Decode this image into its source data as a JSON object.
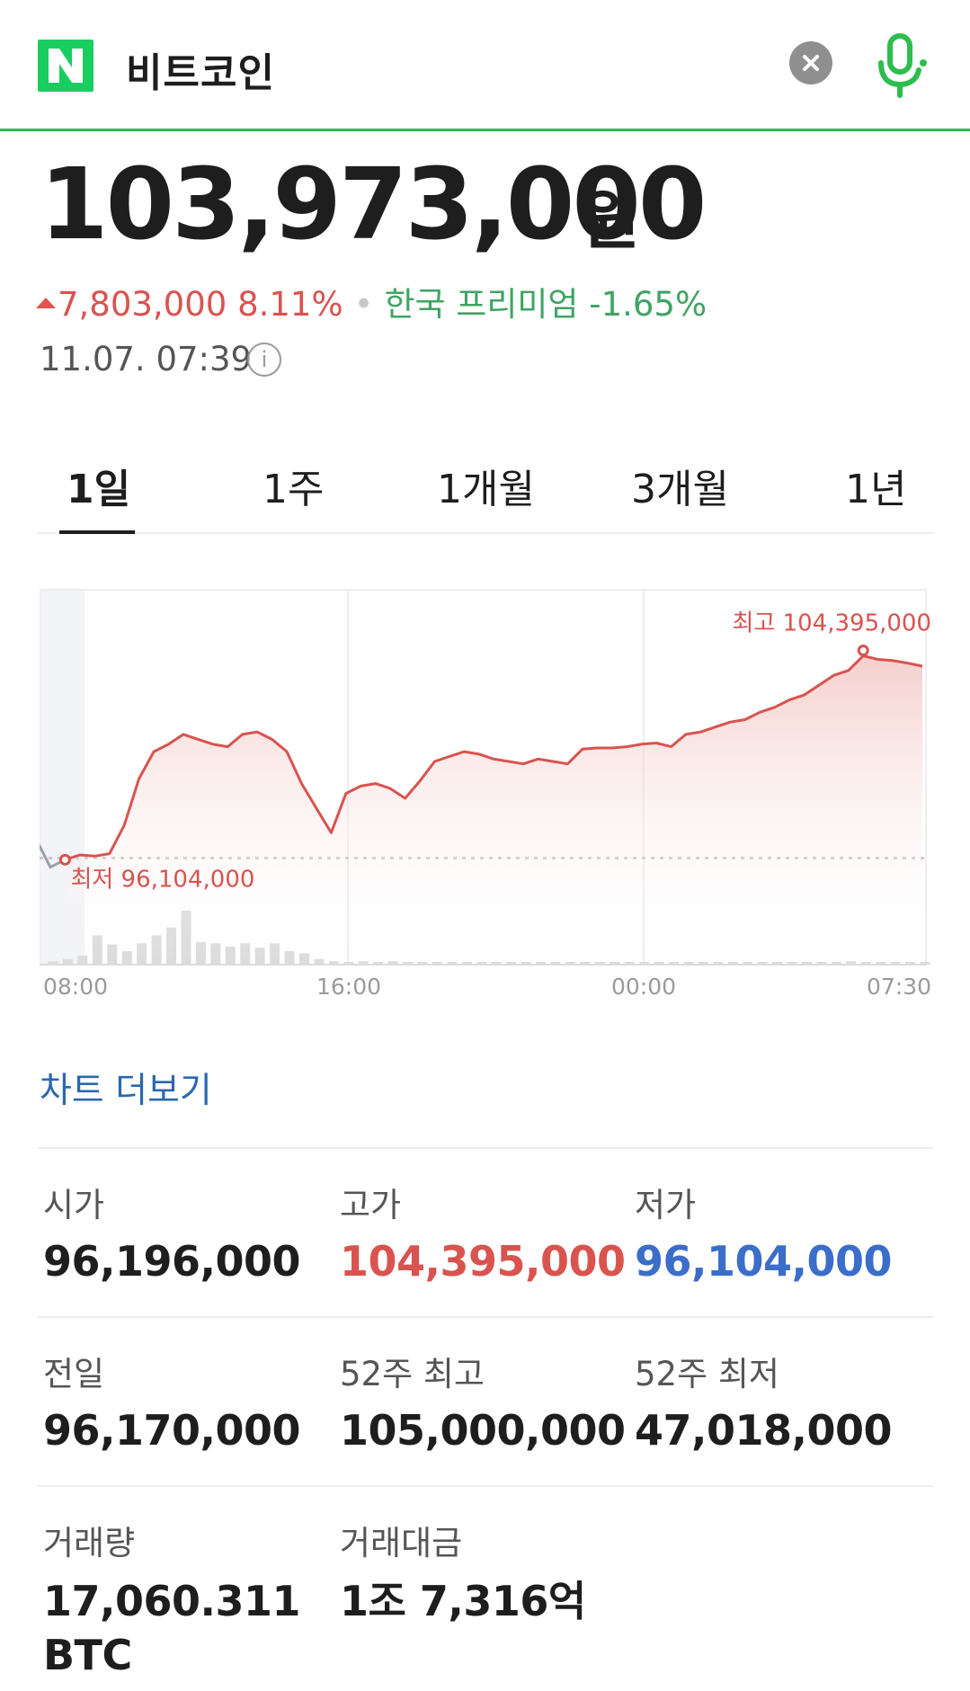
{
  "search": {
    "query": "비트코인"
  },
  "price": {
    "value": "103,973,000",
    "unit": "원"
  },
  "change": {
    "amount": "7,803,000",
    "percent": "8.11%",
    "separator": "•",
    "premium": "한국 프리미엄 -1.65%"
  },
  "timestamp": "11.07. 07:39",
  "info_icon_glyph": "i",
  "tabs": [
    {
      "label": "1일",
      "active": true
    },
    {
      "label": "1주",
      "active": false
    },
    {
      "label": "1개월",
      "active": false
    },
    {
      "label": "3개월",
      "active": false
    },
    {
      "label": "1년",
      "active": false
    }
  ],
  "chart_data": {
    "type": "area",
    "x_tick_labels": [
      "08:00",
      "16:00",
      "00:00",
      "07:30"
    ],
    "series": [
      {
        "values": [
          95800000,
          96104000,
          96300000,
          96250000,
          96350000,
          97500000,
          99400000,
          100500000,
          100800000,
          101200000,
          101000000,
          100800000,
          100700000,
          101200000,
          101300000,
          101000000,
          100500000,
          99200000,
          98200000,
          97200000,
          98800000,
          99100000,
          99200000,
          99000000,
          98600000,
          99300000,
          100100000,
          100300000,
          100500000,
          100400000,
          100200000,
          100100000,
          100000000,
          100200000,
          100100000,
          100000000,
          100600000,
          100650000,
          100650000,
          100700000,
          100800000,
          100850000,
          100700000,
          101200000,
          101300000,
          101500000,
          101700000,
          101800000,
          102100000,
          102300000,
          102600000,
          102800000,
          103200000,
          103600000,
          103800000,
          104395000,
          104250000,
          104200000,
          104100000,
          103973000
        ]
      }
    ],
    "volume": [
      3,
      5,
      8,
      26,
      18,
      12,
      19,
      26,
      33,
      48,
      20,
      19,
      16,
      19,
      15,
      19,
      12,
      10,
      5,
      3,
      2,
      3,
      2,
      3,
      2,
      2,
      1,
      2,
      2,
      2,
      1,
      2,
      1,
      1,
      2,
      1,
      2,
      2,
      2,
      1,
      1,
      2,
      2,
      2,
      2,
      1,
      1,
      2,
      1,
      1,
      1,
      2,
      2,
      2,
      3,
      2,
      2,
      1,
      2,
      1
    ],
    "high": {
      "label": "최고 104,395,000",
      "value": 104395000
    },
    "low": {
      "label": "최저 96,104,000",
      "value": 96104000
    },
    "prev_close": 96170000,
    "grid": true,
    "colors": {
      "line": "#d9534f",
      "fill": "#f8dcda",
      "volume": "#dcdcdc",
      "prev_close": "#c8c8c8",
      "low_label": "#d9534f",
      "high_label": "#d9534f"
    }
  },
  "more_chart_label": "차트 더보기",
  "stats": {
    "open": {
      "label": "시가",
      "value": "96,196,000"
    },
    "high": {
      "label": "고가",
      "value": "104,395,000"
    },
    "low": {
      "label": "저가",
      "value": "96,104,000"
    },
    "prev": {
      "label": "전일",
      "value": "96,170,000"
    },
    "high_52w": {
      "label": "52주 최고",
      "value": "105,000,000"
    },
    "low_52w": {
      "label": "52주 최저",
      "value": "47,018,000"
    },
    "volume": {
      "label": "거래량",
      "value": "17,060.311 BTC"
    },
    "amount": {
      "label": "거래대금",
      "value": "1조 7,316억"
    }
  },
  "colors": {
    "brand_green": "#19ce60",
    "up_red": "#d9534f",
    "down_blue": "#3b6dca",
    "premium_green": "#3fa463",
    "link_blue": "#2b68ad"
  }
}
